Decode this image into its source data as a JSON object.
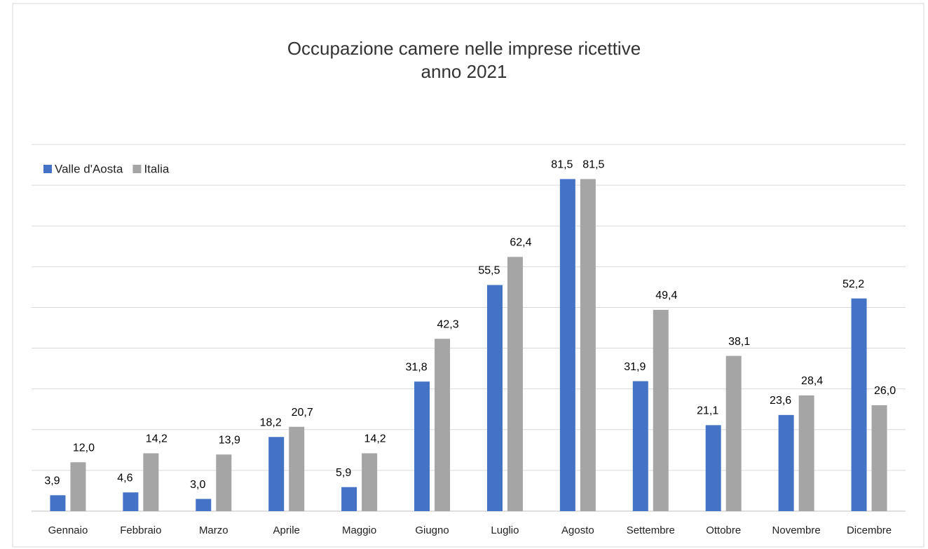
{
  "chart_data": {
    "type": "bar",
    "title": "Occupazione camere nelle imprese ricettive",
    "subtitle": "anno 2021",
    "categories": [
      "Gennaio",
      "Febbraio",
      "Marzo",
      "Aprile",
      "Maggio",
      "Giugno",
      "Luglio",
      "Agosto",
      "Settembre",
      "Ottobre",
      "Novembre",
      "Dicembre"
    ],
    "series": [
      {
        "name": "Valle d'Aosta",
        "color": "#4472c4",
        "values": [
          3.9,
          4.6,
          3.0,
          18.2,
          5.9,
          31.8,
          55.5,
          81.5,
          31.9,
          21.1,
          23.6,
          52.2
        ],
        "value_labels": [
          "3,9",
          "4,6",
          "3,0",
          "18,2",
          "5,9",
          "31,8",
          "55,5",
          "81,5",
          "31,9",
          "21,1",
          "23,6",
          "52,2"
        ]
      },
      {
        "name": "Italia",
        "color": "#a5a5a5",
        "values": [
          12.0,
          14.2,
          13.9,
          20.7,
          14.2,
          42.3,
          62.4,
          81.5,
          49.4,
          38.1,
          28.4,
          26.0
        ],
        "value_labels": [
          "12,0",
          "14,2",
          "13,9",
          "20,7",
          "14,2",
          "42,3",
          "62,4",
          "81,5",
          "49,4",
          "38,1",
          "28,4",
          "26,0"
        ]
      }
    ],
    "ylim": [
      0,
      90
    ],
    "yticks": [
      0,
      10,
      20,
      30,
      40,
      50,
      60,
      70,
      80,
      90
    ],
    "grid": true,
    "legend": "top-left"
  }
}
